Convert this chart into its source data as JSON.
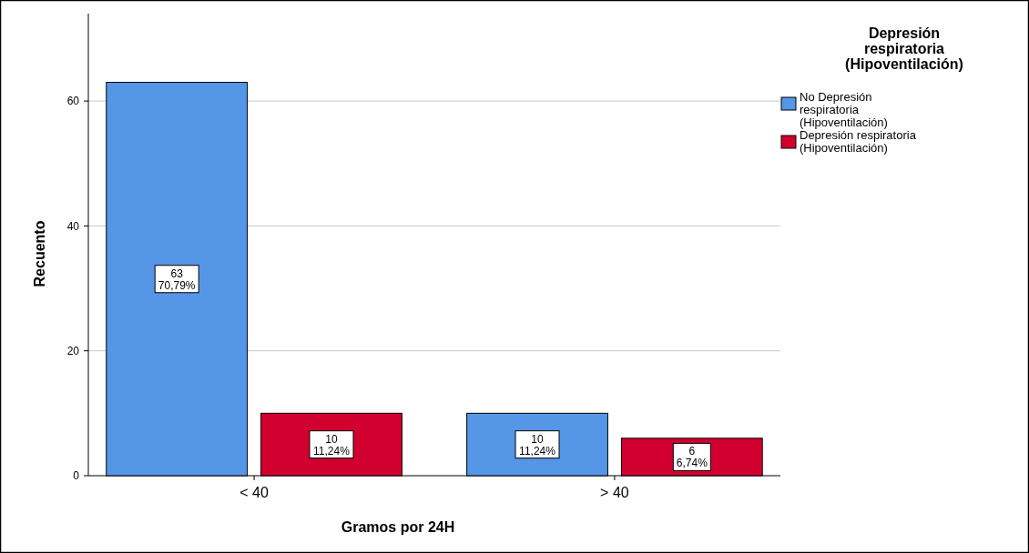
{
  "chart_data": {
    "type": "bar",
    "xlabel": "Gramos por 24H",
    "ylabel": "Recuento",
    "legend_title": "Depresión respiratoria (Hipoventilación)",
    "categories": [
      "< 40",
      "> 40"
    ],
    "series": [
      {
        "name": "No Depresión respiratoria (Hipoventilación)",
        "color": "#5596e6",
        "values": [
          63,
          10
        ],
        "value_labels": [
          "63\n70,79%",
          "10\n11,24%"
        ]
      },
      {
        "name": "Depresión respiratoria (Hipoventilación)",
        "color": "#d1002f",
        "values": [
          10,
          6
        ],
        "value_labels": [
          "10\n11,24%",
          "6\n6,74%"
        ]
      }
    ],
    "ylim": [
      0,
      74
    ],
    "yticks": [
      0,
      20,
      40,
      60
    ],
    "grid": "y",
    "legend": "right"
  }
}
